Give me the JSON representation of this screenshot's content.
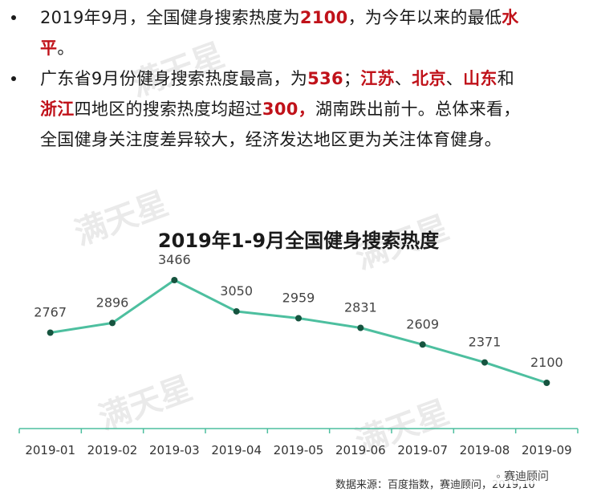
{
  "bullets": [
    {
      "lines": [
        [
          {
            "t": "2019年9月，全国健身搜索热度为"
          },
          {
            "t": "2100",
            "red": true
          },
          {
            "t": "，为今年以来的最低"
          },
          {
            "t": "水",
            "red": true
          }
        ],
        [
          {
            "t": "平",
            "red": true
          },
          {
            "t": "。"
          }
        ]
      ]
    },
    {
      "lines": [
        [
          {
            "t": "广东省9月份健身搜索热度最高，为"
          },
          {
            "t": "536",
            "red": true
          },
          {
            "t": "；"
          },
          {
            "t": "江苏",
            "red": true
          },
          {
            "t": "、"
          },
          {
            "t": "北京",
            "red": true
          },
          {
            "t": "、"
          },
          {
            "t": "山东",
            "red": true
          },
          {
            "t": "和"
          }
        ],
        [
          {
            "t": "浙江",
            "red": true
          },
          {
            "t": "四地区的搜索热度均超过"
          },
          {
            "t": "300，",
            "red": true
          },
          {
            "t": "湖南跌出前十。总体来看，"
          }
        ],
        [
          {
            "t": "全国健身关注度差异较大，经济发达地区更为关注体育健身。"
          }
        ]
      ]
    }
  ],
  "watermark_text": "满天星",
  "source": "数据来源：百度指数，赛迪顾问，2019,10",
  "brand": "赛迪顾问",
  "colors": {
    "line": "#4dbf9f",
    "marker": "#16543f",
    "axis": "#4dbf9f",
    "highlight": "#c0121a"
  },
  "chart_data": {
    "type": "line",
    "title": "2019年1-9月全国健身搜索热度",
    "categories": [
      "2019-01",
      "2019-02",
      "2019-03",
      "2019-04",
      "2019-05",
      "2019-06",
      "2019-07",
      "2019-08",
      "2019-09"
    ],
    "values": [
      2767,
      2896,
      3466,
      3050,
      2959,
      2831,
      2609,
      2371,
      2100
    ],
    "xlabel": "",
    "ylabel": "",
    "grid": false,
    "legend": "none"
  }
}
